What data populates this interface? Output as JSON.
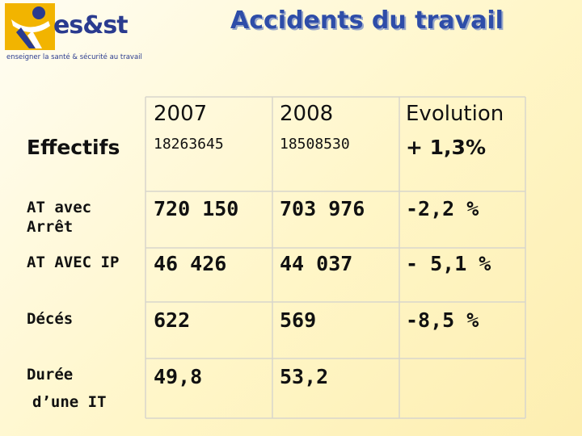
{
  "header": {
    "logo_text": "es&st",
    "logo_tagline": "enseigner la santé & sécurité au travail",
    "title": "Accidents du travail"
  },
  "colors": {
    "title": "#2e4da8",
    "logo_orange": "#f2b400",
    "logo_blue": "#2a3b8f",
    "background": "#fff6c8"
  },
  "table": {
    "columns": [
      "2007",
      "2008",
      "Evolution"
    ],
    "rows": [
      {
        "label": "Effectifs",
        "v2007": "18263645",
        "v2008": "18508530",
        "evolution": "+ 1,3%"
      },
      {
        "label_line1": "AT avec",
        "label_line2": "Arrêt",
        "v2007": "720 150",
        "v2008": "703 976",
        "evolution": "-2,2 %"
      },
      {
        "label": "AT AVEC IP",
        "v2007": "46 426",
        "v2008": "44 037",
        "evolution": "- 5,1 %"
      },
      {
        "label": "Décés",
        "v2007": "622",
        "v2008": "569",
        "evolution": "-8,5 %"
      },
      {
        "label_line1": "Durée",
        "label_line2": "d’une IT",
        "v2007": "49,8",
        "v2008": "53,2",
        "evolution": ""
      }
    ]
  }
}
